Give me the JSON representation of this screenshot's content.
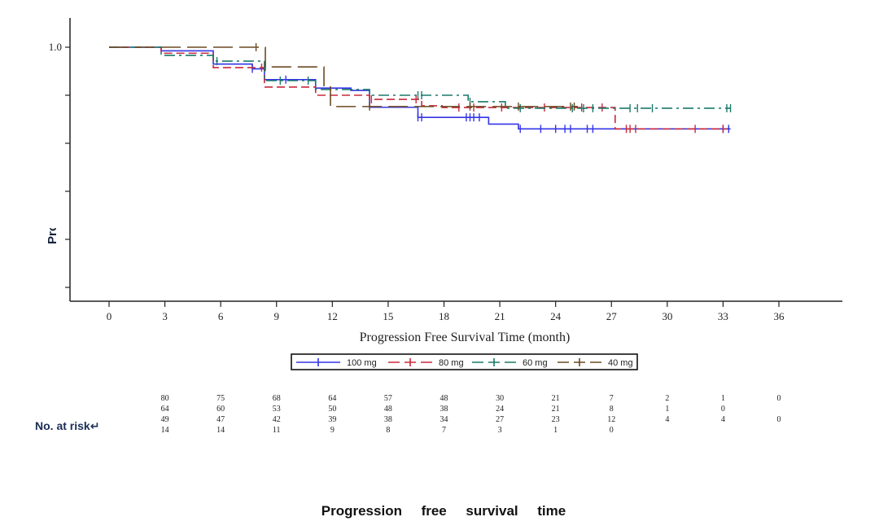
{
  "chart_data": {
    "type": "line",
    "subtype": "kaplan-meier step",
    "xlabel": "Progression Free Survival Time (month)",
    "ylabel": "Probability of PFS(",
    "xlim": [
      0,
      36
    ],
    "ylim": [
      0,
      1.0
    ],
    "xticks": [
      0,
      3,
      6,
      9,
      12,
      15,
      18,
      21,
      24,
      27,
      30,
      33,
      36
    ],
    "yticks": [
      0.0,
      0.2,
      0.4,
      0.6,
      0.8,
      1.0
    ],
    "ytick_labels_shown": [
      "1.0"
    ],
    "grid": false,
    "legend_placement": "bottom-center",
    "series": [
      {
        "name": "100 mg",
        "color": "#3535e8",
        "dash": "solid",
        "times": [
          0,
          2.8,
          5.6,
          7.7,
          8.35,
          11.1,
          13,
          14,
          16.6,
          20.4,
          22
        ],
        "survival": [
          1.0,
          0.985,
          0.93,
          0.91,
          0.865,
          0.83,
          0.82,
          0.75,
          0.708,
          0.68,
          0.66
        ],
        "end": 33.4,
        "censored": [
          7.7,
          9.5,
          16.6,
          16.8,
          19.2,
          19.4,
          19.6,
          19.9,
          22.1,
          23.2,
          24.0,
          24.5,
          24.8,
          25.7,
          26.0,
          33.0,
          33.3
        ]
      },
      {
        "name": "80 mg",
        "color": "#c8283c",
        "dash": "dashed",
        "times": [
          0,
          2.8,
          5.6,
          8.35,
          11.1,
          14,
          16.8,
          17.9,
          27.2
        ],
        "survival": [
          1.0,
          0.975,
          0.915,
          0.834,
          0.8,
          0.783,
          0.756,
          0.749,
          0.66
        ],
        "end": 33.2,
        "censored": [
          8.2,
          14.1,
          16.5,
          18.8,
          19.6,
          21.1,
          23.4,
          25.4,
          26.5,
          27.8,
          28.0,
          28.3,
          31.5,
          33.0
        ]
      },
      {
        "name": "60 mg",
        "color": "#1a7a6a",
        "dash": "dash-dot",
        "times": [
          0,
          2.8,
          5.6,
          8.35,
          11.1,
          14,
          19.3,
          21.3
        ],
        "survival": [
          1.0,
          0.966,
          0.942,
          0.861,
          0.824,
          0.8,
          0.773,
          0.746
        ],
        "end": 33.4,
        "censored": [
          5.8,
          9.2,
          10.7,
          16.6,
          16.8,
          19.4,
          22.1,
          24.9,
          25.5,
          26.0,
          28.0,
          28.4,
          29.2,
          33.2,
          33.4
        ]
      },
      {
        "name": "40 mg",
        "color": "#6b4a22",
        "dash": "long-dash",
        "times": [
          0,
          8.4,
          11.55,
          11.9
        ],
        "survival": [
          1.0,
          0.918,
          0.834,
          0.753
        ],
        "end": 25.2,
        "censored": [
          7.9,
          8.4,
          14.0,
          19.4,
          22.0,
          24.8,
          25.0
        ]
      }
    ],
    "at_risk": {
      "label": "No. at risk↵",
      "times": [
        3,
        6,
        9,
        12,
        15,
        18,
        21,
        24,
        27,
        30,
        33,
        36
      ],
      "rows": [
        [
          "80",
          "75",
          "68",
          "64",
          "57",
          "48",
          "30",
          "21",
          "7",
          "2",
          "1",
          "0"
        ],
        [
          "64",
          "60",
          "53",
          "50",
          "48",
          "38",
          "24",
          "21",
          "8",
          "1",
          "0",
          ""
        ],
        [
          "49",
          "47",
          "42",
          "39",
          "38",
          "34",
          "27",
          "23",
          "12",
          "4",
          "4",
          "0"
        ],
        [
          "14",
          "14",
          "11",
          "9",
          "8",
          "7",
          "3",
          "1",
          "0",
          "",
          "",
          ""
        ]
      ]
    },
    "caption": "Progression     free     survival     time"
  }
}
